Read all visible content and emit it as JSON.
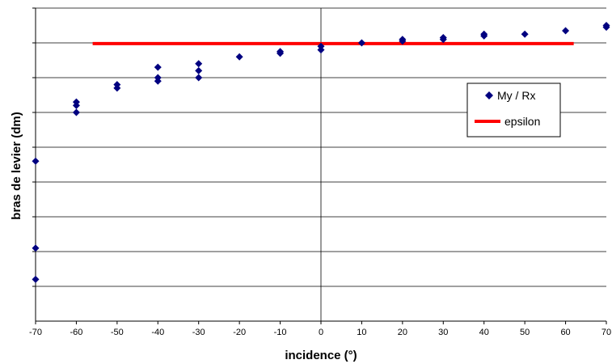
{
  "chart_data": {
    "type": "scatter",
    "xlabel": "incidence (°)",
    "ylabel": "bras de levier (dm)",
    "xlim": [
      -70,
      70
    ],
    "ylim": [
      0,
      9
    ],
    "x_ticks": [
      -70,
      -60,
      -50,
      -40,
      -30,
      -20,
      -10,
      0,
      10,
      20,
      30,
      40,
      50,
      60,
      70
    ],
    "gridlines": "horizontal",
    "legend_position": "right",
    "series": [
      {
        "name": "My / Rx",
        "kind": "scatter",
        "marker": "diamond",
        "color": "#000080",
        "points": [
          [
            -70,
            4.6
          ],
          [
            -70,
            2.1
          ],
          [
            -70,
            1.2
          ],
          [
            -60,
            6.3
          ],
          [
            -60,
            6.2
          ],
          [
            -60,
            6.0
          ],
          [
            -50,
            6.8
          ],
          [
            -50,
            6.7
          ],
          [
            -40,
            7.3
          ],
          [
            -40,
            7.0
          ],
          [
            -40,
            6.9
          ],
          [
            -30,
            7.4
          ],
          [
            -30,
            7.2
          ],
          [
            -30,
            7.0
          ],
          [
            -20,
            7.6
          ],
          [
            -10,
            7.75
          ],
          [
            -10,
            7.7
          ],
          [
            0,
            7.9
          ],
          [
            0,
            7.8
          ],
          [
            10,
            8.0
          ],
          [
            20,
            8.1
          ],
          [
            20,
            8.05
          ],
          [
            30,
            8.15
          ],
          [
            30,
            8.1
          ],
          [
            40,
            8.25
          ],
          [
            40,
            8.2
          ],
          [
            50,
            8.25
          ],
          [
            60,
            8.35
          ],
          [
            70,
            8.5
          ],
          [
            70,
            8.45
          ]
        ]
      },
      {
        "name": "epsilon",
        "kind": "line",
        "color": "#ff0000",
        "x": [
          -56,
          62
        ],
        "y": [
          7.98,
          7.98
        ]
      }
    ]
  }
}
